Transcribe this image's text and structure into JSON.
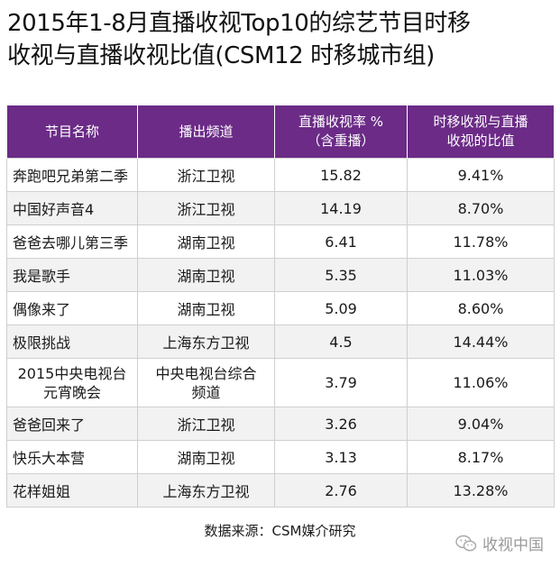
{
  "title": {
    "line1": "2015年1-8月直播收视Top10的综艺节目时移",
    "line2": "收视与直播收视比值(CSM12 时移城市组)"
  },
  "table": {
    "headers": [
      {
        "line1": "节目名称",
        "line2": ""
      },
      {
        "line1": "播出频道",
        "line2": ""
      },
      {
        "line1": "直播收视率 %",
        "line2": "（含重播）"
      },
      {
        "line1": "时移收视与直播",
        "line2": "收视的比值"
      }
    ],
    "rows": [
      {
        "name": [
          "奔跑吧兄弟第二季"
        ],
        "channel": [
          "浙江卫视"
        ],
        "rating": "15.82",
        "ratio": "9.41%"
      },
      {
        "name": [
          "中国好声音4"
        ],
        "channel": [
          "浙江卫视"
        ],
        "rating": "14.19",
        "ratio": "8.70%"
      },
      {
        "name": [
          "爸爸去哪儿第三季"
        ],
        "channel": [
          "湖南卫视"
        ],
        "rating": "6.41",
        "ratio": "11.78%"
      },
      {
        "name": [
          "我是歌手"
        ],
        "channel": [
          "湖南卫视"
        ],
        "rating": "5.35",
        "ratio": "11.03%"
      },
      {
        "name": [
          "偶像来了"
        ],
        "channel": [
          "湖南卫视"
        ],
        "rating": "5.09",
        "ratio": "8.60%"
      },
      {
        "name": [
          "极限挑战"
        ],
        "channel": [
          "上海东方卫视"
        ],
        "rating": "4.5",
        "ratio": "14.44%"
      },
      {
        "name": [
          "2015中央电视台",
          "元宵晚会"
        ],
        "channel": [
          "中央电视台综合",
          "频道"
        ],
        "rating": "3.79",
        "ratio": "11.06%"
      },
      {
        "name": [
          "爸爸回来了"
        ],
        "channel": [
          "浙江卫视"
        ],
        "rating": "3.26",
        "ratio": "9.04%"
      },
      {
        "name": [
          "快乐大本营"
        ],
        "channel": [
          "湖南卫视"
        ],
        "rating": "3.13",
        "ratio": "8.17%"
      },
      {
        "name": [
          "花样姐姐"
        ],
        "channel": [
          "上海东方卫视"
        ],
        "rating": "2.76",
        "ratio": "13.28%"
      }
    ]
  },
  "source": "数据来源：CSM媒介研究",
  "brand": {
    "label": "收视中国",
    "icon": "wechat-icon"
  },
  "colors": {
    "header_bg": "#6b2b86",
    "header_text": "#ffffff",
    "stripe": "#f2f2f2"
  }
}
